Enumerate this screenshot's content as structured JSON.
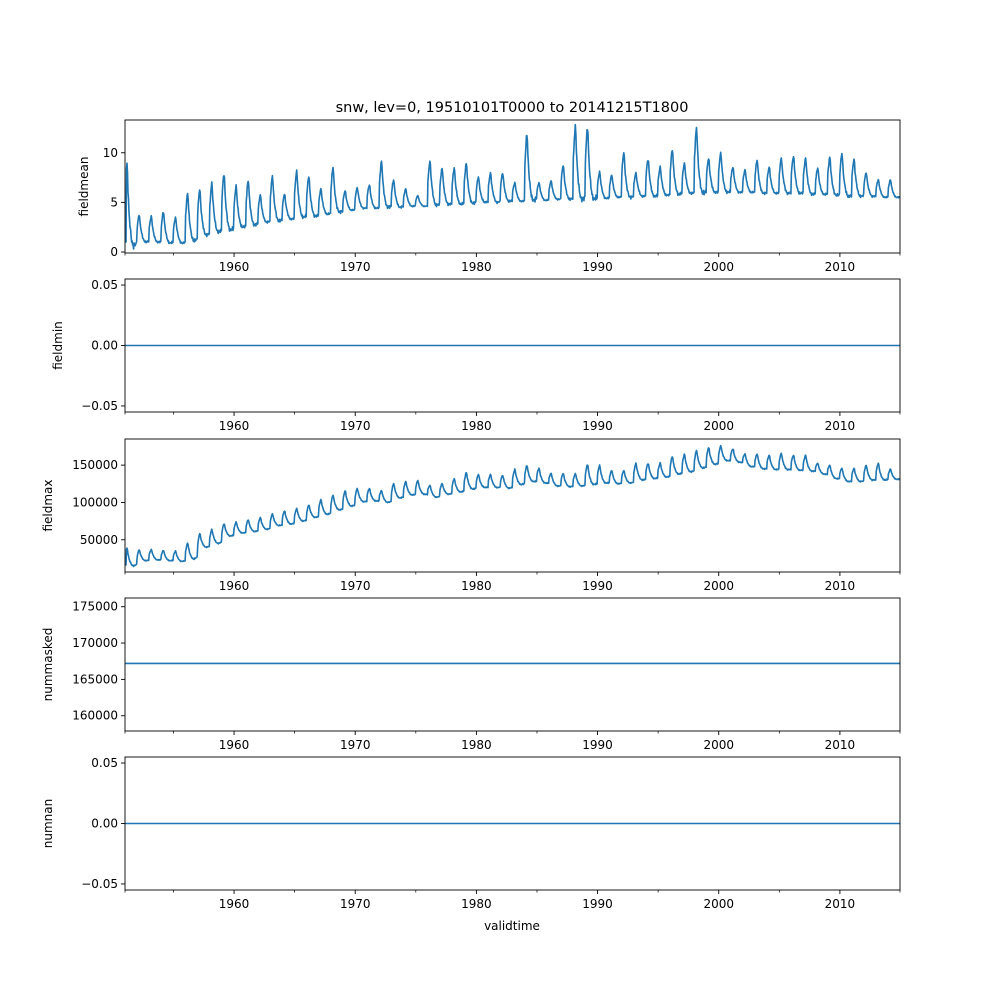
{
  "figure": {
    "title": "snw, lev=0, 19510101T0000 to 20141215T1800",
    "xlabel": "validtime",
    "line_color": "#1f77b4"
  },
  "chart_data": [
    {
      "type": "line",
      "name": "fieldmean",
      "title": "snw, lev=0, 19510101T0000 to 20141215T1800",
      "ylabel": "fieldmean",
      "xlabel": "",
      "xlim": [
        1951.0,
        2014.96
      ],
      "ylim": [
        -0.1,
        13.3
      ],
      "yticks": [
        0,
        5,
        10
      ],
      "ytick_labels": [
        "0",
        "5",
        "10"
      ],
      "xticks": [
        1960,
        1970,
        1980,
        1990,
        2000,
        2010
      ],
      "xtick_labels": [
        "1960",
        "1970",
        "1980",
        "1990",
        "2000",
        "2010"
      ],
      "x_minor_ticks": [
        1951,
        1955,
        1965,
        1975,
        1985,
        1995,
        2005,
        2015
      ],
      "grid": false,
      "series_description": "seasonal cycle; yearly winter peak and summer trough values",
      "years": [
        1951,
        1952,
        1953,
        1954,
        1955,
        1956,
        1957,
        1958,
        1959,
        1960,
        1961,
        1962,
        1963,
        1964,
        1965,
        1966,
        1967,
        1968,
        1969,
        1970,
        1971,
        1972,
        1973,
        1974,
        1975,
        1976,
        1977,
        1978,
        1979,
        1980,
        1981,
        1982,
        1983,
        1984,
        1985,
        1986,
        1987,
        1988,
        1989,
        1990,
        1991,
        1992,
        1993,
        1994,
        1995,
        1996,
        1997,
        1998,
        1999,
        2000,
        2001,
        2002,
        2003,
        2004,
        2005,
        2006,
        2007,
        2008,
        2009,
        2010,
        2011,
        2012,
        2013,
        2014
      ],
      "peaks": [
        9.0,
        3.8,
        3.6,
        4.1,
        3.5,
        6.0,
        6.4,
        7.0,
        8.0,
        6.7,
        7.3,
        5.8,
        7.7,
        5.9,
        8.2,
        7.7,
        6.4,
        8.6,
        6.2,
        6.5,
        6.8,
        9.2,
        7.3,
        6.4,
        5.7,
        9.2,
        8.5,
        8.5,
        9.0,
        7.6,
        8.0,
        8.0,
        7.0,
        12.0,
        7.0,
        7.2,
        8.8,
        12.7,
        12.7,
        8.1,
        7.8,
        10.1,
        8.0,
        9.4,
        8.6,
        10.4,
        9.0,
        12.6,
        9.5,
        10.0,
        8.6,
        8.3,
        9.3,
        8.6,
        9.5,
        9.7,
        9.5,
        8.5,
        9.6,
        10.0,
        9.4,
        8.0,
        7.3,
        7.3
      ],
      "troughs": [
        0.6,
        1.0,
        1.0,
        0.9,
        0.9,
        1.1,
        1.7,
        2.0,
        2.2,
        2.5,
        2.7,
        3.0,
        3.1,
        3.3,
        3.5,
        3.6,
        3.8,
        4.0,
        4.2,
        4.4,
        4.4,
        4.5,
        4.5,
        4.6,
        4.6,
        4.7,
        4.8,
        4.8,
        4.9,
        5.0,
        5.0,
        5.1,
        5.1,
        5.2,
        5.2,
        5.3,
        5.3,
        5.3,
        5.3,
        5.4,
        5.5,
        5.5,
        5.6,
        5.6,
        5.7,
        5.8,
        5.9,
        5.9,
        6.0,
        6.0,
        6.0,
        6.0,
        5.9,
        5.9,
        5.9,
        5.9,
        5.8,
        5.8,
        5.7,
        5.6,
        5.6,
        5.6,
        5.5,
        5.5
      ]
    },
    {
      "type": "line",
      "name": "fieldmin",
      "ylabel": "fieldmin",
      "xlim": [
        1951.0,
        2014.96
      ],
      "ylim": [
        -0.055,
        0.055
      ],
      "yticks": [
        -0.05,
        0.0,
        0.05
      ],
      "ytick_labels": [
        "−0.05",
        "0.00",
        "0.05"
      ],
      "xticks": [
        1960,
        1970,
        1980,
        1990,
        2000,
        2010
      ],
      "xtick_labels": [
        "1960",
        "1970",
        "1980",
        "1990",
        "2000",
        "2010"
      ],
      "x_minor_ticks": [
        1951,
        1955,
        1965,
        1975,
        1985,
        1995,
        2005,
        2015
      ],
      "grid": false,
      "constant_value": 0.0
    },
    {
      "type": "line",
      "name": "fieldmax",
      "ylabel": "fieldmax",
      "xlim": [
        1951.0,
        2014.96
      ],
      "ylim": [
        6800,
        185000
      ],
      "yticks": [
        50000,
        100000,
        150000
      ],
      "ytick_labels": [
        "50000",
        "100000",
        "150000"
      ],
      "xticks": [
        1960,
        1970,
        1980,
        1990,
        2000,
        2010
      ],
      "xtick_labels": [
        "1960",
        "1970",
        "1980",
        "1990",
        "2000",
        "2010"
      ],
      "x_minor_ticks": [
        1951,
        1955,
        1965,
        1975,
        1985,
        1995,
        2005,
        2015
      ],
      "grid": false,
      "series_description": "seasonal cycle; yearly peak and trough values",
      "years": [
        1951,
        1952,
        1953,
        1954,
        1955,
        1956,
        1957,
        1958,
        1959,
        1960,
        1961,
        1962,
        1963,
        1964,
        1965,
        1966,
        1967,
        1968,
        1969,
        1970,
        1971,
        1972,
        1973,
        1974,
        1975,
        1976,
        1977,
        1978,
        1979,
        1980,
        1981,
        1982,
        1983,
        1984,
        1985,
        1986,
        1987,
        1988,
        1989,
        1990,
        1991,
        1992,
        1993,
        1994,
        1995,
        1996,
        1997,
        1998,
        1999,
        2000,
        2001,
        2002,
        2003,
        2004,
        2005,
        2006,
        2007,
        2008,
        2009,
        2010,
        2011,
        2012,
        2013,
        2014
      ],
      "peaks": [
        39000,
        37000,
        37000,
        36000,
        35000,
        46000,
        59000,
        64000,
        72000,
        74000,
        77000,
        80000,
        85000,
        89000,
        92000,
        97000,
        104000,
        110000,
        116000,
        119000,
        119000,
        116000,
        125700,
        128400,
        129700,
        123000,
        125700,
        132000,
        140500,
        137800,
        137800,
        136500,
        144600,
        150000,
        146000,
        139200,
        139200,
        138500,
        151400,
        150000,
        143000,
        143000,
        152700,
        152700,
        153000,
        162000,
        165000,
        170000,
        174000,
        176000,
        172000,
        165000,
        165000,
        163500,
        166000,
        163500,
        163500,
        152700,
        150000,
        146000,
        146000,
        150000,
        152700,
        145000
      ],
      "troughs": [
        15000,
        22000,
        23000,
        22000,
        21000,
        24000,
        40000,
        45000,
        55000,
        59000,
        61000,
        64000,
        69000,
        71000,
        75000,
        80000,
        84000,
        90000,
        95000,
        101000,
        102000,
        100000,
        106000,
        110000,
        111000,
        107000,
        111000,
        114000,
        118000,
        120000,
        120000,
        119000,
        124000,
        128000,
        126000,
        122000,
        121000,
        122000,
        124000,
        126000,
        125000,
        126000,
        130000,
        132000,
        134000,
        138000,
        141000,
        146000,
        151000,
        156000,
        154000,
        148000,
        145000,
        144000,
        144000,
        143000,
        142000,
        138000,
        132000,
        128000,
        128000,
        130000,
        130000,
        131000
      ]
    },
    {
      "type": "line",
      "name": "nummasked",
      "ylabel": "nummasked",
      "xlim": [
        1951.0,
        2014.96
      ],
      "ylim": [
        157900,
        176200
      ],
      "yticks": [
        160000,
        165000,
        170000,
        175000
      ],
      "ytick_labels": [
        "160000",
        "165000",
        "170000",
        "175000"
      ],
      "xticks": [
        1960,
        1970,
        1980,
        1990,
        2000,
        2010
      ],
      "xtick_labels": [
        "1960",
        "1970",
        "1980",
        "1990",
        "2000",
        "2010"
      ],
      "x_minor_ticks": [
        1951,
        1955,
        1965,
        1975,
        1985,
        1995,
        2005,
        2015
      ],
      "grid": false,
      "constant_value": 167200
    },
    {
      "type": "line",
      "name": "numnan",
      "ylabel": "numnan",
      "xlabel": "validtime",
      "xlim": [
        1951.0,
        2014.96
      ],
      "ylim": [
        -0.055,
        0.055
      ],
      "yticks": [
        -0.05,
        0.0,
        0.05
      ],
      "ytick_labels": [
        "−0.05",
        "0.00",
        "0.05"
      ],
      "xticks": [
        1960,
        1970,
        1980,
        1990,
        2000,
        2010
      ],
      "xtick_labels": [
        "1960",
        "1970",
        "1980",
        "1990",
        "2000",
        "2010"
      ],
      "x_minor_ticks": [
        1951,
        1955,
        1965,
        1975,
        1985,
        1995,
        2005,
        2015
      ],
      "grid": false,
      "constant_value": 0.0
    }
  ]
}
